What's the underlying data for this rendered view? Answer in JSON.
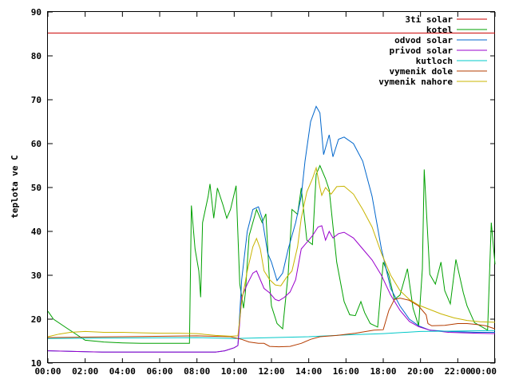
{
  "chart_data": {
    "type": "line",
    "xlabel": "",
    "ylabel": "teplota ve C",
    "ylim": [
      10,
      90
    ],
    "xlim": [
      0,
      24
    ],
    "grid": false,
    "legend_position": "top-right",
    "y_ticks": [
      "10",
      "20",
      "30",
      "40",
      "50",
      "60",
      "70",
      "80",
      "90"
    ],
    "x_ticks": [
      "00:00",
      "02:00",
      "04:00",
      "06:00",
      "08:00",
      "10:00",
      "12:00",
      "14:00",
      "16:00",
      "18:00",
      "20:00",
      "22:00",
      "00:00"
    ],
    "series": [
      {
        "name": "3ti solar",
        "color": "#cc0000",
        "points": [
          [
            0,
            85.2
          ],
          [
            24,
            85.2
          ]
        ]
      },
      {
        "name": "kotel",
        "color": "#00a000",
        "points": [
          [
            0,
            21.8
          ],
          [
            0.3,
            20
          ],
          [
            1,
            18
          ],
          [
            2,
            15.2
          ],
          [
            3,
            14.8
          ],
          [
            4,
            14.6
          ],
          [
            5,
            14.5
          ],
          [
            6,
            14.5
          ],
          [
            7,
            14.5
          ],
          [
            7.6,
            14.5
          ],
          [
            7.7,
            45.9
          ],
          [
            7.9,
            36
          ],
          [
            8.1,
            31
          ],
          [
            8.2,
            25
          ],
          [
            8.3,
            42
          ],
          [
            8.6,
            48
          ],
          [
            8.7,
            50.8
          ],
          [
            8.9,
            43
          ],
          [
            9.1,
            49.9
          ],
          [
            9.4,
            46
          ],
          [
            9.6,
            43
          ],
          [
            9.8,
            45
          ],
          [
            10.1,
            50.4
          ],
          [
            10.3,
            28
          ],
          [
            10.5,
            22.5
          ],
          [
            10.6,
            26
          ],
          [
            10.8,
            39
          ],
          [
            11.2,
            45
          ],
          [
            11.5,
            42
          ],
          [
            11.7,
            44
          ],
          [
            11.9,
            28
          ],
          [
            12.0,
            23
          ],
          [
            12.3,
            19
          ],
          [
            12.6,
            17.8
          ],
          [
            12.9,
            30.5
          ],
          [
            13.1,
            45
          ],
          [
            13.4,
            43.9
          ],
          [
            13.6,
            49.9
          ],
          [
            13.9,
            38
          ],
          [
            14.2,
            37
          ],
          [
            14.4,
            53
          ],
          [
            14.6,
            55
          ],
          [
            14.9,
            52
          ],
          [
            15.1,
            49.5
          ],
          [
            15.5,
            33
          ],
          [
            15.9,
            24
          ],
          [
            16.2,
            21
          ],
          [
            16.5,
            20.8
          ],
          [
            16.8,
            24
          ],
          [
            17.0,
            21.5
          ],
          [
            17.3,
            19
          ],
          [
            17.7,
            18.2
          ],
          [
            18.0,
            33
          ],
          [
            18.3,
            30
          ],
          [
            18.6,
            24.5
          ],
          [
            18.9,
            25.5
          ],
          [
            19.3,
            31.5
          ],
          [
            19.6,
            22.5
          ],
          [
            19.9,
            18.5
          ],
          [
            20.1,
            31.5
          ],
          [
            20.2,
            54.1
          ],
          [
            20.5,
            30.2
          ],
          [
            20.8,
            28
          ],
          [
            21.1,
            33
          ],
          [
            21.3,
            26.5
          ],
          [
            21.6,
            23.5
          ],
          [
            21.9,
            33.6
          ],
          [
            22.3,
            26
          ],
          [
            22.5,
            23
          ],
          [
            22.9,
            19.2
          ],
          [
            23.2,
            18.5
          ],
          [
            23.6,
            17.5
          ],
          [
            23.8,
            42
          ],
          [
            24,
            32.5
          ]
        ]
      },
      {
        "name": "odvod solar",
        "color": "#0066cc",
        "points": [
          [
            0,
            12.8
          ],
          [
            3,
            12.5
          ],
          [
            6,
            12.5
          ],
          [
            9,
            12.5
          ],
          [
            9.5,
            12.8
          ],
          [
            10.0,
            13.5
          ],
          [
            10.2,
            14
          ],
          [
            10.4,
            29
          ],
          [
            10.7,
            40
          ],
          [
            11.0,
            45
          ],
          [
            11.3,
            45.6
          ],
          [
            11.5,
            43
          ],
          [
            11.8,
            35
          ],
          [
            12.0,
            33
          ],
          [
            12.3,
            28.8
          ],
          [
            12.6,
            30.5
          ],
          [
            12.9,
            36
          ],
          [
            13.3,
            42
          ],
          [
            13.6,
            48
          ],
          [
            13.8,
            56
          ],
          [
            14.1,
            65
          ],
          [
            14.4,
            68.5
          ],
          [
            14.6,
            67
          ],
          [
            14.8,
            57.5
          ],
          [
            15.1,
            62
          ],
          [
            15.3,
            57
          ],
          [
            15.6,
            61
          ],
          [
            15.9,
            61.5
          ],
          [
            16.4,
            60
          ],
          [
            16.9,
            56
          ],
          [
            17.4,
            48
          ],
          [
            17.9,
            36
          ],
          [
            18.4,
            27
          ],
          [
            18.9,
            23
          ],
          [
            19.4,
            20
          ],
          [
            19.9,
            18.5
          ],
          [
            20.5,
            17.5
          ],
          [
            21.5,
            17.2
          ],
          [
            23,
            17
          ],
          [
            24,
            17
          ]
        ]
      },
      {
        "name": "privod solar",
        "color": "#9900cc",
        "points": [
          [
            0,
            12.8
          ],
          [
            3,
            12.5
          ],
          [
            6,
            12.5
          ],
          [
            9,
            12.5
          ],
          [
            9.5,
            12.8
          ],
          [
            10.0,
            13.5
          ],
          [
            10.2,
            14
          ],
          [
            10.4,
            25
          ],
          [
            10.7,
            28
          ],
          [
            11.0,
            30.5
          ],
          [
            11.2,
            31
          ],
          [
            11.4,
            29
          ],
          [
            11.6,
            27
          ],
          [
            11.9,
            26
          ],
          [
            12.2,
            24.5
          ],
          [
            12.4,
            24.2
          ],
          [
            12.7,
            25
          ],
          [
            13.0,
            26.2
          ],
          [
            13.3,
            29
          ],
          [
            13.6,
            36
          ],
          [
            13.9,
            37.5
          ],
          [
            14.2,
            39
          ],
          [
            14.5,
            41
          ],
          [
            14.7,
            41.3
          ],
          [
            14.9,
            38
          ],
          [
            15.1,
            40
          ],
          [
            15.3,
            38.5
          ],
          [
            15.6,
            39.5
          ],
          [
            15.9,
            39.8
          ],
          [
            16.4,
            38.5
          ],
          [
            16.9,
            36
          ],
          [
            17.4,
            33.5
          ],
          [
            17.9,
            30
          ],
          [
            18.4,
            25.5
          ],
          [
            18.9,
            22
          ],
          [
            19.4,
            19.5
          ],
          [
            19.9,
            18.3
          ],
          [
            20.5,
            17.5
          ],
          [
            21.5,
            17
          ],
          [
            23,
            16.8
          ],
          [
            24,
            16.7
          ]
        ]
      },
      {
        "name": "kutloch",
        "color": "#00c8c8",
        "points": [
          [
            0,
            15.6
          ],
          [
            4,
            15.7
          ],
          [
            8,
            15.8
          ],
          [
            10,
            15.6
          ],
          [
            12,
            15.8
          ],
          [
            14,
            16.0
          ],
          [
            16,
            16.4
          ],
          [
            18,
            16.7
          ],
          [
            20,
            17.2
          ],
          [
            22,
            17.3
          ],
          [
            24,
            17.4
          ]
        ]
      },
      {
        "name": "vymenik dole",
        "color": "#b43c00",
        "points": [
          [
            0,
            15.8
          ],
          [
            4,
            16.0
          ],
          [
            8,
            16.2
          ],
          [
            9.8,
            16.0
          ],
          [
            10.4,
            15.4
          ],
          [
            10.8,
            14.8
          ],
          [
            11.3,
            14.5
          ],
          [
            11.6,
            14.5
          ],
          [
            11.9,
            13.8
          ],
          [
            12.4,
            13.7
          ],
          [
            13.0,
            13.8
          ],
          [
            13.6,
            14.5
          ],
          [
            14.1,
            15.4
          ],
          [
            14.6,
            16.0
          ],
          [
            15.5,
            16.3
          ],
          [
            16.5,
            16.8
          ],
          [
            17.5,
            17.5
          ],
          [
            18.0,
            17.6
          ],
          [
            18.3,
            22
          ],
          [
            18.6,
            24.5
          ],
          [
            18.9,
            24.8
          ],
          [
            19.4,
            24.3
          ],
          [
            19.9,
            23
          ],
          [
            20.3,
            21
          ],
          [
            20.4,
            19
          ],
          [
            20.6,
            18.5
          ],
          [
            21.3,
            18.6
          ],
          [
            22.0,
            19
          ],
          [
            22.5,
            19
          ],
          [
            23.0,
            18.8
          ],
          [
            23.5,
            18.5
          ],
          [
            24,
            17.8
          ]
        ]
      },
      {
        "name": "vymenik nahore",
        "color": "#c8b400",
        "points": [
          [
            0,
            16.0
          ],
          [
            0.6,
            16.6
          ],
          [
            1.2,
            17.0
          ],
          [
            2,
            17.2
          ],
          [
            3,
            17.0
          ],
          [
            4,
            17.0
          ],
          [
            5,
            16.9
          ],
          [
            6,
            16.8
          ],
          [
            7,
            16.8
          ],
          [
            8,
            16.7
          ],
          [
            9,
            16.3
          ],
          [
            9.8,
            16.1
          ],
          [
            10.2,
            16.2
          ],
          [
            10.4,
            24
          ],
          [
            10.7,
            31
          ],
          [
            11.0,
            36.5
          ],
          [
            11.2,
            38.4
          ],
          [
            11.4,
            36
          ],
          [
            11.6,
            31
          ],
          [
            11.9,
            29
          ],
          [
            12.2,
            27.8
          ],
          [
            12.5,
            27.6
          ],
          [
            12.8,
            29.5
          ],
          [
            13.1,
            31
          ],
          [
            13.4,
            36.5
          ],
          [
            13.6,
            43
          ],
          [
            13.9,
            49
          ],
          [
            14.2,
            52
          ],
          [
            14.4,
            54.5
          ],
          [
            14.6,
            50
          ],
          [
            14.7,
            48.2
          ],
          [
            14.9,
            50
          ],
          [
            15.2,
            48.5
          ],
          [
            15.5,
            50.2
          ],
          [
            15.9,
            50.3
          ],
          [
            16.4,
            48.5
          ],
          [
            16.9,
            45
          ],
          [
            17.4,
            41
          ],
          [
            17.9,
            35
          ],
          [
            18.4,
            30
          ],
          [
            18.9,
            26.5
          ],
          [
            19.4,
            24.5
          ],
          [
            19.9,
            23.2
          ],
          [
            20.5,
            22.2
          ],
          [
            21.1,
            21.2
          ],
          [
            21.8,
            20.3
          ],
          [
            22.5,
            19.7
          ],
          [
            23.2,
            19.4
          ],
          [
            24,
            19.3
          ]
        ]
      }
    ]
  }
}
